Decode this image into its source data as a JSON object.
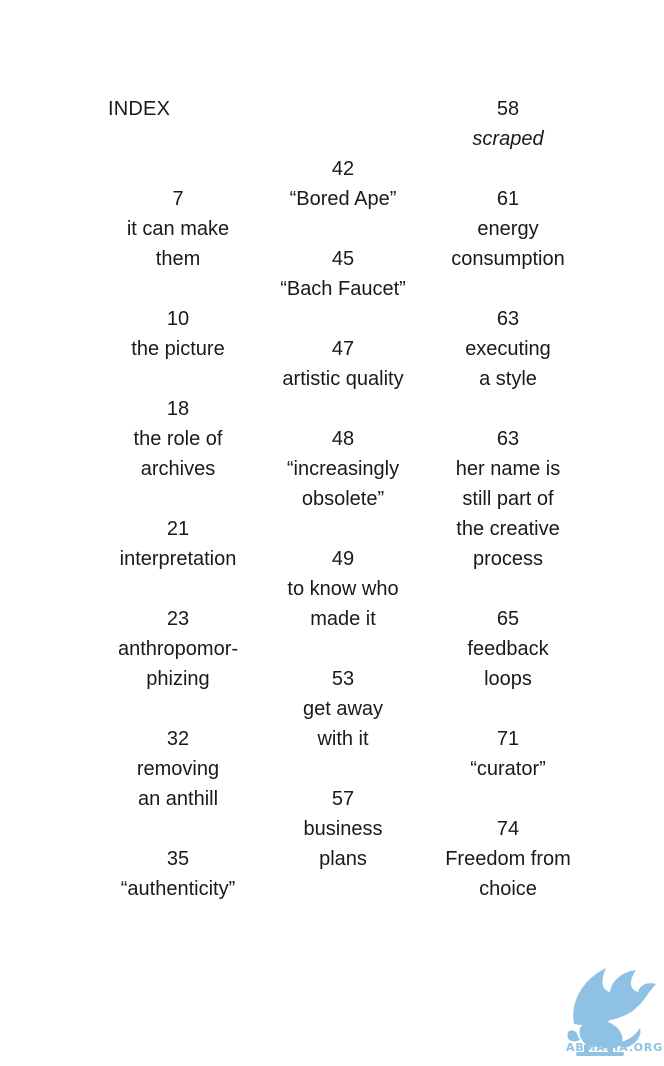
{
  "title": "INDEX",
  "columns": [
    [
      {
        "num": "7",
        "term": "it can make\nthem"
      },
      {
        "num": "10",
        "term": "the picture"
      },
      {
        "num": "18",
        "term": "the role of\narchives"
      },
      {
        "num": "21",
        "term": "interpretation"
      },
      {
        "num": "23",
        "term": "anthropomor-\nphizing"
      },
      {
        "num": "32",
        "term": "removing\nan anthill"
      },
      {
        "num": "35",
        "term": "“authenticity”"
      }
    ],
    [
      {
        "num": "42",
        "term": "“Bored Ape”"
      },
      {
        "num": "45",
        "term": "“Bach Faucet”"
      },
      {
        "num": "47",
        "term": "artistic quality"
      },
      {
        "num": "48",
        "term": "“increasingly\nobsolete”"
      },
      {
        "num": "49",
        "term": "to know who\nmade it"
      },
      {
        "num": "53",
        "term": "get away\nwith it"
      },
      {
        "num": "57",
        "term": "business\nplans"
      }
    ],
    [
      {
        "num": "58",
        "term": "scraped",
        "italic": true
      },
      {
        "num": "61",
        "term": "energy\nconsumption"
      },
      {
        "num": "63",
        "term": "executing\na style"
      },
      {
        "num": "63",
        "term": "her name is\nstill part of\nthe creative\nprocess"
      },
      {
        "num": "65",
        "term": "feedback\nloops"
      },
      {
        "num": "71",
        "term": "“curator”"
      },
      {
        "num": "74",
        "term": "Freedom from\nchoice"
      }
    ]
  ],
  "watermark": {
    "text": "ABMASIA.ORG",
    "icon": "griffin-icon",
    "color": "#8fc1e4"
  }
}
